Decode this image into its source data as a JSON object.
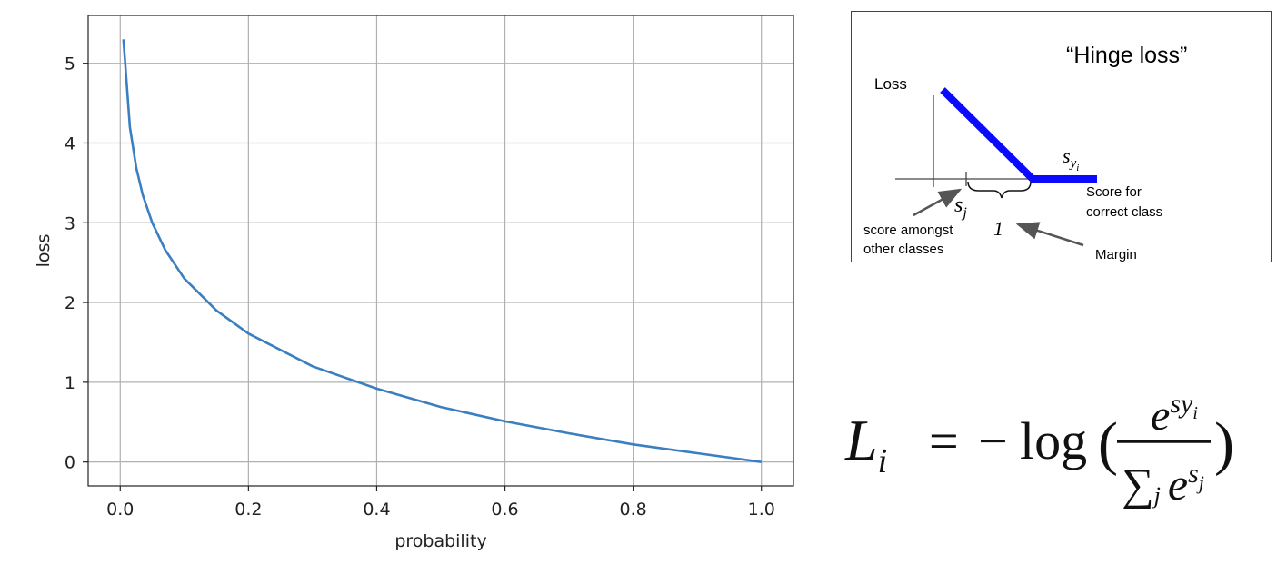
{
  "chart_data": {
    "type": "line",
    "title": "",
    "xlabel": "probability",
    "ylabel": "loss",
    "xlim": [
      -0.05,
      1.05
    ],
    "ylim": [
      -0.3,
      5.6
    ],
    "xticks": [
      0.0,
      0.2,
      0.4,
      0.6,
      0.8,
      1.0
    ],
    "xtick_labels": [
      "0.0",
      "0.2",
      "0.4",
      "0.6",
      "0.8",
      "1.0"
    ],
    "yticks": [
      0,
      1,
      2,
      3,
      4,
      5
    ],
    "ytick_labels": [
      "0",
      "1",
      "2",
      "3",
      "4",
      "5"
    ],
    "grid": true,
    "series": [
      {
        "color": "#3a7fc1",
        "x": [
          0.005,
          0.015,
          0.025,
          0.035,
          0.05,
          0.07,
          0.1,
          0.15,
          0.2,
          0.3,
          0.4,
          0.5,
          0.6,
          0.7,
          0.8,
          0.9,
          1.0
        ],
        "y": [
          5.3,
          4.2,
          3.69,
          3.35,
          3.0,
          2.66,
          2.3,
          1.9,
          1.61,
          1.2,
          0.92,
          0.69,
          0.51,
          0.36,
          0.22,
          0.11,
          0.0
        ]
      }
    ]
  },
  "hinge_diagram": {
    "title": "“Hinge loss”",
    "loss_label": "Loss",
    "syi_label_base": "s",
    "syi_label_sub": "y",
    "syi_label_subsub": "i",
    "sj_label_base": "s",
    "sj_label_sub": "j",
    "margin_value": "1",
    "score_correct_line1": "Score for",
    "score_correct_line2": "correct class",
    "score_other_line1": "score amongst",
    "score_other_line2": "other classes",
    "margin_label": "Margin",
    "line_color": "#0a0aff"
  },
  "formula": {
    "lhs_base": "L",
    "lhs_sub": "i",
    "equals": "=",
    "minus": "−",
    "log": "log",
    "open_paren": "(",
    "close_paren": ")",
    "num_base": "e",
    "num_sup": "s",
    "num_sup_sub": "y",
    "num_sup_subsub": "i",
    "den_sum": "∑",
    "den_sum_sub": "j",
    "den_base": "e",
    "den_sup": "s",
    "den_sup_sub": "j"
  }
}
